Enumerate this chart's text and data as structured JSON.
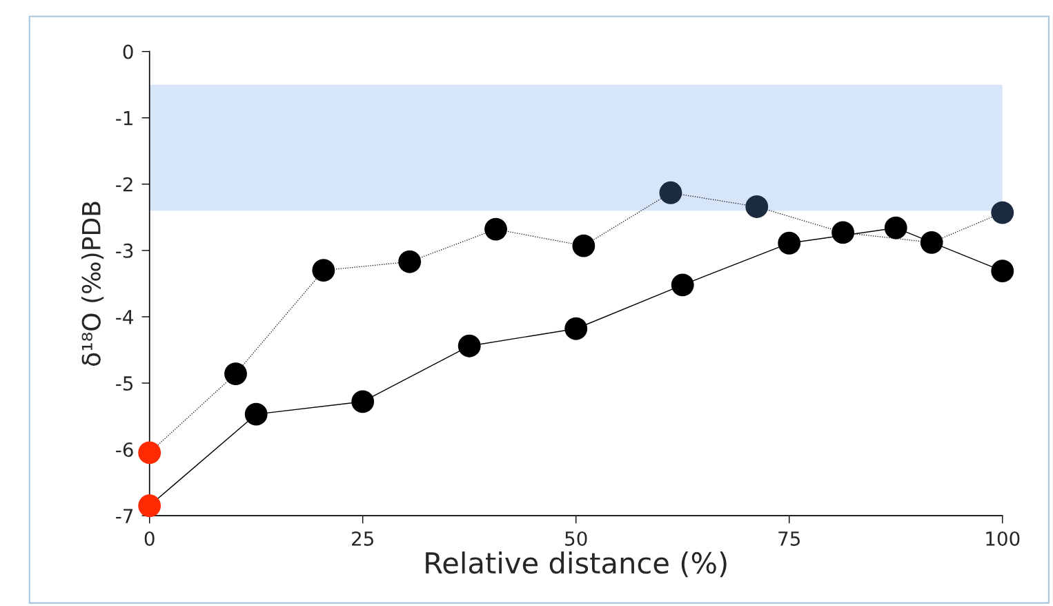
{
  "chart_data": {
    "type": "line",
    "xlabel": "Relative distance (%)",
    "ylabel": "δ¹⁸O (‰)PDB",
    "xlim": [
      0,
      100
    ],
    "xticks": [
      0,
      25,
      50,
      75,
      100
    ],
    "ylim": [
      -7,
      0
    ],
    "yticks": [
      0,
      -1,
      -2,
      -3,
      -4,
      -5,
      -6,
      -7
    ],
    "grid": false,
    "marker": "circle",
    "bands": [
      {
        "axis": "y",
        "from": -0.5,
        "to": -2.4,
        "color": "#d6e5f7"
      }
    ],
    "series": [
      {
        "x": [
          0,
          10.1,
          20.4,
          30.5,
          40.6,
          50.9,
          61.1,
          71.2,
          81.3,
          91.7,
          100
        ],
        "values": [
          -6.05,
          -4.86,
          -3.3,
          -3.17,
          -2.68,
          -2.93,
          -2.13,
          -2.34,
          -2.73,
          -2.88,
          -2.43
        ],
        "color": "#000000",
        "line_style": "dotted",
        "colors": [
          "#ff2a00",
          "#000000",
          "#000000",
          "#000000",
          "#000000",
          "#000000",
          "#1c2b40",
          "#1c2b40",
          "#000000",
          "#000000",
          "#1c2b40"
        ]
      },
      {
        "x": [
          0,
          12.5,
          25,
          37.5,
          50,
          62.5,
          75,
          87.5,
          100
        ],
        "values": [
          -6.85,
          -5.47,
          -5.28,
          -4.44,
          -4.18,
          -3.52,
          -2.89,
          -2.66,
          -3.31
        ],
        "color": "#000000",
        "line_style": "solid",
        "colors": [
          "#ff2a00",
          "#000000",
          "#000000",
          "#000000",
          "#000000",
          "#000000",
          "#000000",
          "#000000",
          "#000000"
        ]
      }
    ]
  }
}
